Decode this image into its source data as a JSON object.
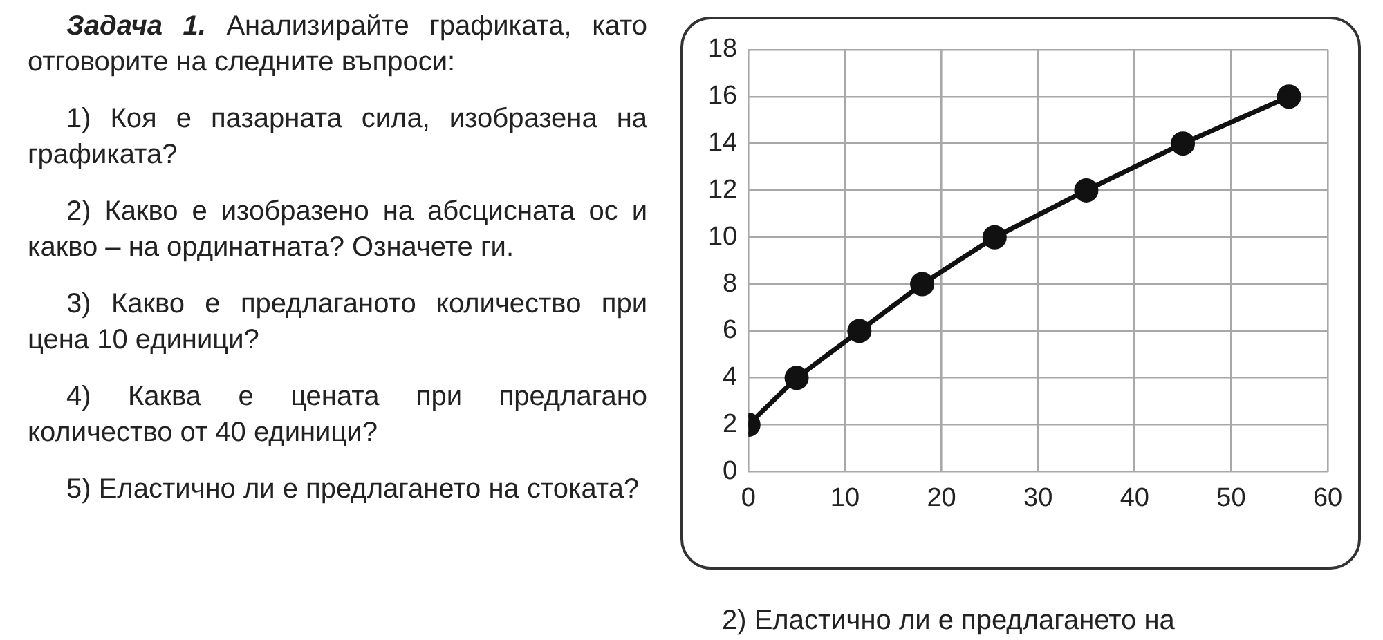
{
  "chart_data": {
    "type": "line",
    "title": "Задача 1.",
    "annotations": [
      "Анализирайте графиката, като отговорите на следните въпроси:",
      "1) Коя е пазарната сила, изобразена на графиката?",
      "2) Какво е изобразено на абсцисната ос и какво – на ординатната? Означете ги.",
      "3) Какво е предлаганото количество при цена 10 единици?",
      "4) Каква е цената при предлагано количество от 40 единици?",
      "5) Еластично ли е предлагането на стоката?",
      "2) Еластично ли е предлагането на"
    ],
    "x": [
      0,
      5,
      11.5,
      18,
      25.5,
      35,
      45,
      56
    ],
    "series": [
      {
        "color": "#111111",
        "values": [
          2,
          4,
          6,
          8,
          10,
          12,
          14,
          16
        ]
      }
    ],
    "xlim": [
      0,
      60
    ],
    "xticks": [
      0,
      10,
      20,
      30,
      40,
      50,
      60
    ],
    "ylim": [
      0,
      18
    ],
    "yticks": [
      0,
      2,
      4,
      6,
      8,
      10,
      12,
      14,
      16,
      18
    ],
    "grid": true,
    "marker": "circle",
    "line_style": "solid",
    "legend": false
  }
}
